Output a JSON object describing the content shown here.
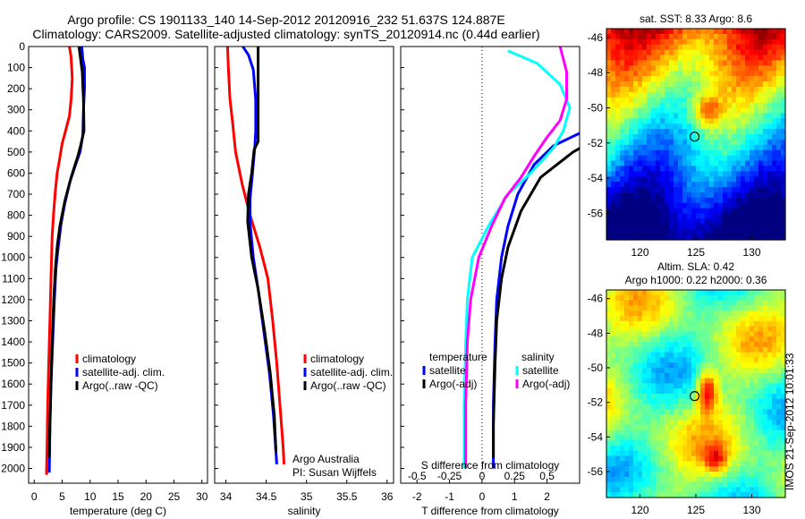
{
  "header": {
    "title_line1": "Argo profile: CS 1901133_140 14-Sep-2012 20120916_232 51.637S 124.887E",
    "title_line2": "Climatology: CARS2009. Satellite-adjusted climatology: synTS_20120914.nc (0.44d earlier)"
  },
  "colors": {
    "red": "#ff0000",
    "blue": "#0000ff",
    "black": "#000000",
    "cyan": "#00ffff",
    "magenta": "#ff00ff"
  },
  "chart_data": [
    {
      "type": "line",
      "id": "temperature",
      "xlabel": "temperature (deg C)",
      "ylabel": "",
      "xlim": [
        -1,
        31
      ],
      "ylim": [
        2070,
        0
      ],
      "xticks": [
        0,
        5,
        10,
        15,
        20,
        25,
        30
      ],
      "yticks": [
        0,
        100,
        200,
        300,
        400,
        500,
        600,
        700,
        800,
        900,
        1000,
        1100,
        1200,
        1300,
        1400,
        1500,
        1600,
        1700,
        1800,
        1900,
        2000
      ],
      "legend": [
        "climatology",
        "satellite-adj. clim.",
        "Argo(..raw -QC)"
      ],
      "legend_position": "lower-middle",
      "series": [
        {
          "name": "climatology",
          "color": "red",
          "points": [
            [
              6.3,
              0
            ],
            [
              6.6,
              50
            ],
            [
              6.8,
              150
            ],
            [
              6.6,
              250
            ],
            [
              6.3,
              330
            ],
            [
              5.6,
              400
            ],
            [
              5.0,
              460
            ],
            [
              4.5,
              540
            ],
            [
              4.1,
              600
            ],
            [
              3.8,
              680
            ],
            [
              3.5,
              780
            ],
            [
              3.2,
              900
            ],
            [
              3.0,
              1100
            ],
            [
              2.8,
              1300
            ],
            [
              2.6,
              1500
            ],
            [
              2.4,
              1700
            ],
            [
              2.3,
              1900
            ],
            [
              2.2,
              2030
            ]
          ]
        },
        {
          "name": "satellite-adj. clim.",
          "color": "blue",
          "points": [
            [
              8.5,
              0
            ],
            [
              8.7,
              60
            ],
            [
              9.0,
              100
            ],
            [
              9.0,
              200
            ],
            [
              8.8,
              300
            ],
            [
              8.7,
              420
            ],
            [
              8.2,
              500
            ],
            [
              7.4,
              560
            ],
            [
              6.4,
              640
            ],
            [
              5.5,
              740
            ],
            [
              4.8,
              840
            ],
            [
              4.3,
              950
            ],
            [
              3.9,
              1050
            ],
            [
              3.6,
              1200
            ],
            [
              3.3,
              1400
            ],
            [
              3.0,
              1600
            ],
            [
              2.8,
              1800
            ],
            [
              2.7,
              2020
            ]
          ]
        },
        {
          "name": "Argo(..raw -QC)",
          "color": "black",
          "points": [
            [
              8.0,
              0
            ],
            [
              8.3,
              60
            ],
            [
              8.6,
              120
            ],
            [
              8.8,
              250
            ],
            [
              8.9,
              400
            ],
            [
              8.3,
              470
            ],
            [
              7.8,
              520
            ],
            [
              6.6,
              620
            ],
            [
              5.5,
              730
            ],
            [
              4.6,
              850
            ],
            [
              4.1,
              950
            ],
            [
              3.8,
              1050
            ],
            [
              3.5,
              1200
            ],
            [
              3.2,
              1400
            ],
            [
              3.0,
              1600
            ],
            [
              2.8,
              1800
            ],
            [
              2.7,
              1950
            ]
          ]
        }
      ]
    },
    {
      "type": "line",
      "id": "salinity",
      "xlabel": "salinity",
      "ylabel": "",
      "xlim": [
        33.86,
        36.08
      ],
      "ylim": [
        2070,
        0
      ],
      "xticks": [
        34,
        34.5,
        35,
        35.5,
        36
      ],
      "legend": [
        "climatology",
        "satellite-adj. clim.",
        "Argo(..raw -QC)"
      ],
      "legend_position": "lower-middle",
      "annotation": [
        "Argo Australia",
        "PI: Susan Wijffels"
      ],
      "series": [
        {
          "name": "climatology",
          "color": "red",
          "points": [
            [
              34.02,
              0
            ],
            [
              34.03,
              100
            ],
            [
              34.05,
              250
            ],
            [
              34.08,
              350
            ],
            [
              34.12,
              500
            ],
            [
              34.2,
              650
            ],
            [
              34.3,
              800
            ],
            [
              34.42,
              950
            ],
            [
              34.52,
              1100
            ],
            [
              34.58,
              1300
            ],
            [
              34.63,
              1500
            ],
            [
              34.67,
              1700
            ],
            [
              34.71,
              1900
            ],
            [
              34.72,
              1980
            ]
          ]
        },
        {
          "name": "satellite-adj. clim.",
          "color": "blue",
          "points": [
            [
              34.21,
              0
            ],
            [
              34.28,
              40
            ],
            [
              34.34,
              110
            ],
            [
              34.37,
              250
            ],
            [
              34.37,
              400
            ],
            [
              34.36,
              470
            ],
            [
              34.33,
              600
            ],
            [
              34.3,
              720
            ],
            [
              34.3,
              840
            ],
            [
              34.34,
              1000
            ],
            [
              34.4,
              1150
            ],
            [
              34.47,
              1350
            ],
            [
              34.54,
              1550
            ],
            [
              34.59,
              1750
            ],
            [
              34.62,
              1920
            ],
            [
              34.63,
              1980
            ]
          ]
        },
        {
          "name": "Argo(..raw -QC)",
          "color": "black",
          "points": [
            [
              34.4,
              0
            ],
            [
              34.4,
              100
            ],
            [
              34.4,
              250
            ],
            [
              34.4,
              400
            ],
            [
              34.4,
              450
            ],
            [
              34.35,
              490
            ],
            [
              34.32,
              600
            ],
            [
              34.28,
              700
            ],
            [
              34.27,
              830
            ],
            [
              34.32,
              1000
            ],
            [
              34.4,
              1150
            ],
            [
              34.48,
              1350
            ],
            [
              34.55,
              1550
            ],
            [
              34.6,
              1750
            ],
            [
              34.62,
              1920
            ]
          ]
        }
      ]
    },
    {
      "type": "line",
      "id": "differences",
      "xlabel": "T difference from climatology",
      "xlabel_top": "S difference from climatology",
      "xlim": [
        -2.5,
        3
      ],
      "ylim": [
        2070,
        0
      ],
      "xticks": [
        -2,
        -1,
        0,
        1,
        2
      ],
      "xticks_top": [
        -0.5,
        -0.25,
        0,
        0.25,
        0.5
      ],
      "zero_line": "dotted",
      "legend_left_title": "temperature",
      "legend_right_title": "salinity",
      "legend": [
        "satellite",
        "Argo(-adj)",
        "satellite",
        "Argo(-adj)"
      ],
      "series": [
        {
          "name": "satellite",
          "group": "temperature",
          "color": "blue",
          "points": [
            [
              8.6,
              0
            ],
            [
              2.2,
              470
            ],
            [
              1.6,
              560
            ],
            [
              1.1,
              700
            ],
            [
              0.8,
              850
            ],
            [
              0.6,
              1000
            ],
            [
              0.45,
              1200
            ],
            [
              0.4,
              1400
            ],
            [
              0.35,
              1700
            ],
            [
              0.35,
              2000
            ]
          ]
        },
        {
          "name": "Argo(-adj)",
          "group": "temperature",
          "color": "black",
          "points": [
            [
              8.5,
              0
            ],
            [
              2.8,
              500
            ],
            [
              1.8,
              620
            ],
            [
              1.2,
              780
            ],
            [
              0.8,
              950
            ],
            [
              0.6,
              1100
            ],
            [
              0.45,
              1300
            ],
            [
              0.4,
              1500
            ],
            [
              0.35,
              1800
            ],
            [
              0.35,
              1950
            ]
          ]
        },
        {
          "name": "satellite",
          "group": "salinity",
          "color": "cyan",
          "points": [
            [
              0.8,
              20
            ],
            [
              1.7,
              80
            ],
            [
              2.4,
              180
            ],
            [
              2.7,
              290
            ],
            [
              2.5,
              400
            ],
            [
              2.2,
              480
            ],
            [
              1.5,
              600
            ],
            [
              0.8,
              700
            ],
            [
              0.2,
              850
            ],
            [
              -0.3,
              1000
            ],
            [
              -0.45,
              1200
            ],
            [
              -0.5,
              1400
            ],
            [
              -0.55,
              1700
            ],
            [
              -0.55,
              2000
            ]
          ]
        },
        {
          "name": "Argo(-adj)",
          "group": "salinity",
          "color": "magenta",
          "points": [
            [
              2.4,
              0
            ],
            [
              2.6,
              120
            ],
            [
              2.6,
              250
            ],
            [
              2.4,
              350
            ],
            [
              2.0,
              430
            ],
            [
              1.6,
              520
            ],
            [
              1.2,
              620
            ],
            [
              0.7,
              720
            ],
            [
              0.3,
              850
            ],
            [
              -0.1,
              1000
            ],
            [
              -0.35,
              1200
            ],
            [
              -0.45,
              1400
            ],
            [
              -0.5,
              1700
            ],
            [
              -0.5,
              2000
            ]
          ]
        }
      ]
    },
    {
      "type": "heatmap",
      "id": "sst_map",
      "title": "sat. SST: 8.33 Argo: 8.6",
      "xlim": [
        117,
        133
      ],
      "ylim": [
        -57.5,
        -45.5
      ],
      "xticks": [
        120,
        125,
        130
      ],
      "yticks": [
        -46,
        -48,
        -50,
        -52,
        -54,
        -56
      ],
      "argo_position": [
        124.887,
        -51.637
      ]
    },
    {
      "type": "heatmap",
      "id": "sla_map",
      "title": "Altim. SLA: 0.42",
      "subtitle": "Argo h1000: 0.22 h2000: 0.36",
      "xlim": [
        117,
        133
      ],
      "ylim": [
        -57.5,
        -45.5
      ],
      "xticks": [
        120,
        125,
        130
      ],
      "yticks": [
        -46,
        -48,
        -50,
        -52,
        -54,
        -56
      ],
      "argo_position": [
        124.887,
        -51.637
      ]
    }
  ],
  "stamp": "IMOS 21-Sep-2012 10:01:33"
}
